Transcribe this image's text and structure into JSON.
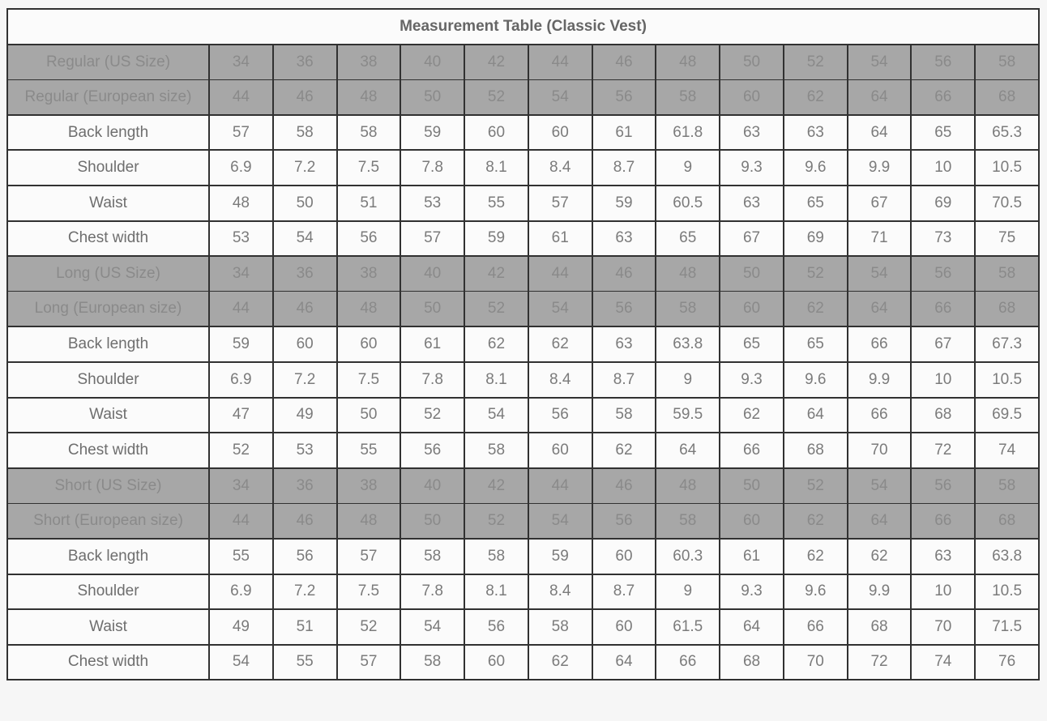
{
  "theme": {
    "page-bg": "#f6f6f6",
    "table-border": "#313131",
    "title-bg": "#fbfbfb",
    "title-text": "#666666",
    "size-row-bg": "#a7a7a7",
    "size-row-text": "#8a8a8a",
    "measure-row-bg": "#fbfbfb",
    "measure-label-text": "#6e6e6e",
    "measure-value-text": "#7b7b7b"
  },
  "table": {
    "title": "Measurement Table (Classic Vest)",
    "columns_per_row": 13,
    "rows": [
      {
        "type": "size",
        "label": "Regular (US Size)",
        "values": [
          "34",
          "36",
          "38",
          "40",
          "42",
          "44",
          "46",
          "48",
          "50",
          "52",
          "54",
          "56",
          "58"
        ]
      },
      {
        "type": "size",
        "label": "Regular (European size)",
        "values": [
          "44",
          "46",
          "48",
          "50",
          "52",
          "54",
          "56",
          "58",
          "60",
          "62",
          "64",
          "66",
          "68"
        ]
      },
      {
        "type": "measure",
        "label": "Back length",
        "values": [
          "57",
          "58",
          "58",
          "59",
          "60",
          "60",
          "61",
          "61.8",
          "63",
          "63",
          "64",
          "65",
          "65.3"
        ]
      },
      {
        "type": "measure",
        "label": "Shoulder",
        "values": [
          "6.9",
          "7.2",
          "7.5",
          "7.8",
          "8.1",
          "8.4",
          "8.7",
          "9",
          "9.3",
          "9.6",
          "9.9",
          "10",
          "10.5"
        ]
      },
      {
        "type": "measure",
        "label": "Waist",
        "values": [
          "48",
          "50",
          "51",
          "53",
          "55",
          "57",
          "59",
          "60.5",
          "63",
          "65",
          "67",
          "69",
          "70.5"
        ]
      },
      {
        "type": "measure",
        "label": "Chest width",
        "values": [
          "53",
          "54",
          "56",
          "57",
          "59",
          "61",
          "63",
          "65",
          "67",
          "69",
          "71",
          "73",
          "75"
        ]
      },
      {
        "type": "size",
        "label": "Long (US Size)",
        "values": [
          "34",
          "36",
          "38",
          "40",
          "42",
          "44",
          "46",
          "48",
          "50",
          "52",
          "54",
          "56",
          "58"
        ]
      },
      {
        "type": "size",
        "label": "Long (European size)",
        "values": [
          "44",
          "46",
          "48",
          "50",
          "52",
          "54",
          "56",
          "58",
          "60",
          "62",
          "64",
          "66",
          "68"
        ]
      },
      {
        "type": "measure",
        "label": "Back length",
        "values": [
          "59",
          "60",
          "60",
          "61",
          "62",
          "62",
          "63",
          "63.8",
          "65",
          "65",
          "66",
          "67",
          "67.3"
        ]
      },
      {
        "type": "measure",
        "label": "Shoulder",
        "values": [
          "6.9",
          "7.2",
          "7.5",
          "7.8",
          "8.1",
          "8.4",
          "8.7",
          "9",
          "9.3",
          "9.6",
          "9.9",
          "10",
          "10.5"
        ]
      },
      {
        "type": "measure",
        "label": "Waist",
        "values": [
          "47",
          "49",
          "50",
          "52",
          "54",
          "56",
          "58",
          "59.5",
          "62",
          "64",
          "66",
          "68",
          "69.5"
        ]
      },
      {
        "type": "measure",
        "label": "Chest width",
        "values": [
          "52",
          "53",
          "55",
          "56",
          "58",
          "60",
          "62",
          "64",
          "66",
          "68",
          "70",
          "72",
          "74"
        ]
      },
      {
        "type": "size",
        "label": "Short (US Size)",
        "values": [
          "34",
          "36",
          "38",
          "40",
          "42",
          "44",
          "46",
          "48",
          "50",
          "52",
          "54",
          "56",
          "58"
        ]
      },
      {
        "type": "size",
        "label": "Short (European size)",
        "values": [
          "44",
          "46",
          "48",
          "50",
          "52",
          "54",
          "56",
          "58",
          "60",
          "62",
          "64",
          "66",
          "68"
        ]
      },
      {
        "type": "measure",
        "label": "Back length",
        "values": [
          "55",
          "56",
          "57",
          "58",
          "58",
          "59",
          "60",
          "60.3",
          "61",
          "62",
          "62",
          "63",
          "63.8"
        ]
      },
      {
        "type": "measure",
        "label": "Shoulder",
        "values": [
          "6.9",
          "7.2",
          "7.5",
          "7.8",
          "8.1",
          "8.4",
          "8.7",
          "9",
          "9.3",
          "9.6",
          "9.9",
          "10",
          "10.5"
        ]
      },
      {
        "type": "measure",
        "label": "Waist",
        "values": [
          "49",
          "51",
          "52",
          "54",
          "56",
          "58",
          "60",
          "61.5",
          "64",
          "66",
          "68",
          "70",
          "71.5"
        ]
      },
      {
        "type": "measure",
        "label": "Chest width",
        "values": [
          "54",
          "55",
          "57",
          "58",
          "60",
          "62",
          "64",
          "66",
          "68",
          "70",
          "72",
          "74",
          "76"
        ]
      }
    ]
  }
}
